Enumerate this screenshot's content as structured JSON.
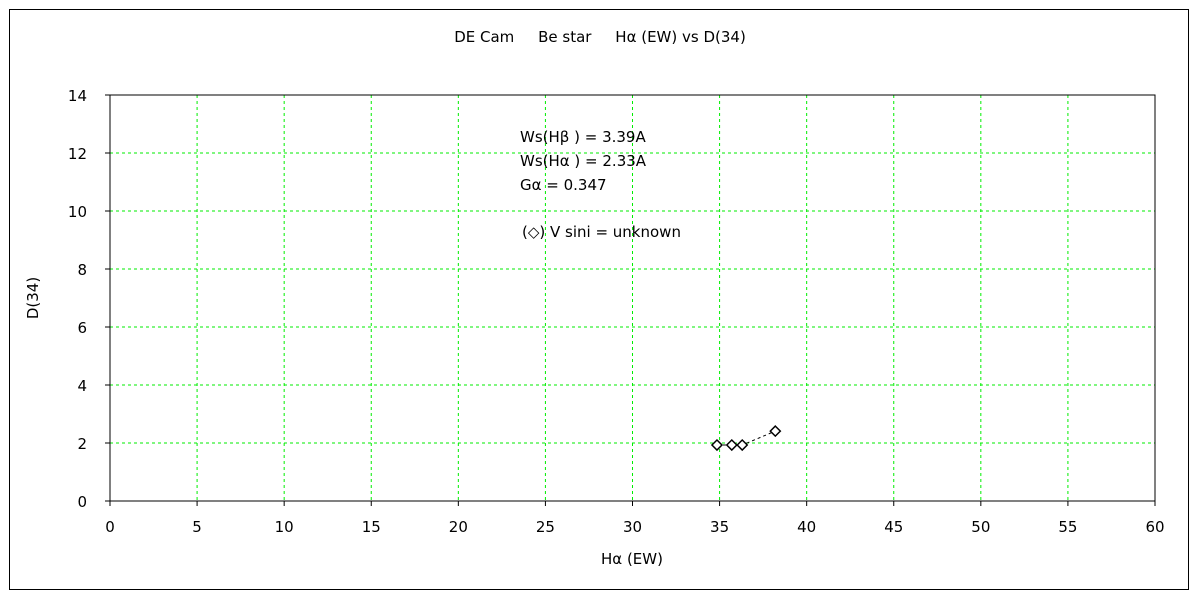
{
  "chart_data": {
    "type": "scatter",
    "title": "DE Cam     Be star     Hα (EW) vs D(34)",
    "xlabel": "Hα (EW)",
    "ylabel": "D(34)",
    "xlim": [
      0,
      60
    ],
    "ylim": [
      0,
      14
    ],
    "xticks": [
      0,
      5,
      10,
      15,
      20,
      25,
      30,
      35,
      40,
      45,
      50,
      55,
      60
    ],
    "yticks": [
      0,
      2,
      4,
      6,
      8,
      10,
      12,
      14
    ],
    "grid": true,
    "grid_color": "#00ee00",
    "marker": "diamond",
    "series": [
      {
        "x": [
          34.85,
          35.7,
          36.3,
          38.2
        ],
        "y": [
          1.93,
          1.93,
          1.93,
          2.41
        ]
      }
    ],
    "annotations": [
      "Ws(Hβ ) = 3.39A",
      "Ws(Hα ) = 2.33A",
      "Gα = 0.347",
      "(◇) V sini = unknown"
    ]
  }
}
